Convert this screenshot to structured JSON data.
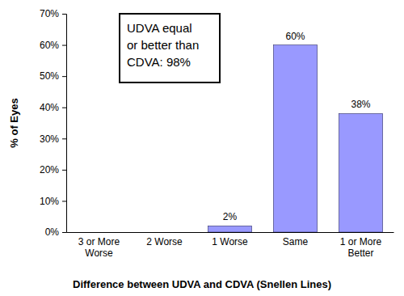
{
  "chart_data": {
    "type": "bar",
    "categories": [
      "3 or More Worse",
      "2 Worse",
      "1 Worse",
      "Same",
      "1 or More Better"
    ],
    "values": [
      0,
      0,
      2,
      60,
      38
    ],
    "value_labels": [
      null,
      null,
      "2%",
      "60%",
      "38%"
    ],
    "data_labels": true,
    "color": "#9999ff",
    "x_label": "Difference between UDVA and CDVA (Snellen Lines)",
    "y_label": "% of Eyes",
    "annotation": [
      "UDVA equal",
      "or better than",
      "CDVA: 98%"
    ],
    "ylim": [
      0,
      70
    ],
    "yticks": [
      {
        "value": 0,
        "label": "0%"
      },
      {
        "value": 10,
        "label": "10%"
      },
      {
        "value": 20,
        "label": "20%"
      },
      {
        "value": 30,
        "label": "30%"
      },
      {
        "value": 40,
        "label": "40%"
      },
      {
        "value": 50,
        "label": "50%"
      },
      {
        "value": 60,
        "label": "60%"
      },
      {
        "value": 70,
        "label": "70%"
      }
    ],
    "grid": false
  }
}
